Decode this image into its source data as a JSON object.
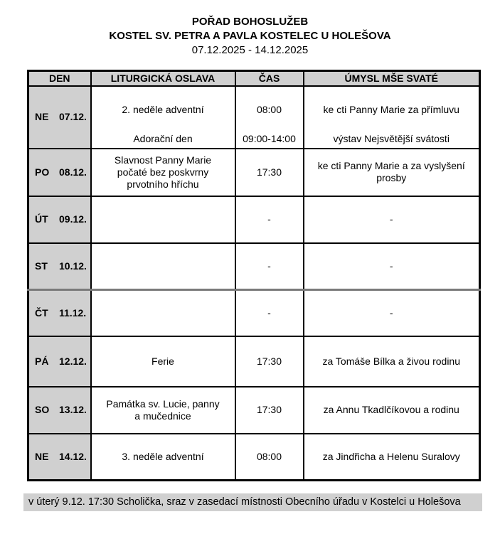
{
  "header": {
    "title": "POŘAD BOHOSLUŽEB",
    "subtitle": "KOSTEL SV. PETRA A PAVLA KOSTELEC U HOLEŠOVA",
    "date_range": "07.12.2025 - 14.12.2025"
  },
  "table": {
    "headers": [
      "DEN",
      "LITURGICKÁ OSLAVA",
      "ČAS",
      "ÚMYSL MŠE SVATÉ"
    ],
    "rows": [
      {
        "day": "NE",
        "date": "07.12.",
        "entries": [
          {
            "oslava": "2. neděle adventní",
            "cas": "08:00",
            "umysl": "ke cti Panny Marie za přímluvu"
          },
          {
            "oslava": "Adorační den",
            "cas": "09:00-14:00",
            "umysl": "výstav Nejsvětější svátosti"
          }
        ]
      },
      {
        "day": "PO",
        "date": "08.12.",
        "entries": [
          {
            "oslava": "Slavnost Panny Marie\npočaté bez poskvrny\nprvotního hříchu",
            "cas": "17:30",
            "umysl": "ke cti Panny Marie a za vyslyšení\nprosby"
          }
        ]
      },
      {
        "day": "ÚT",
        "date": "09.12.",
        "entries": [
          {
            "oslava": "",
            "cas": "-",
            "umysl": "-"
          }
        ]
      },
      {
        "day": "ST",
        "date": "10.12.",
        "entries": [
          {
            "oslava": "",
            "cas": "-",
            "umysl": "-"
          }
        ]
      },
      {
        "day": "ČT",
        "date": "11.12.",
        "entries": [
          {
            "oslava": "",
            "cas": "-",
            "umysl": "-"
          }
        ]
      },
      {
        "day": "PÁ",
        "date": "12.12.",
        "entries": [
          {
            "oslava": "Ferie",
            "cas": "17:30",
            "umysl": "za Tomáše Bílka a živou rodinu"
          }
        ]
      },
      {
        "day": "SO",
        "date": "13.12.",
        "entries": [
          {
            "oslava": "Památka sv. Lucie, panny\na mučednice",
            "cas": "17:30",
            "umysl": "za Annu Tkadlčíkovou a rodinu"
          }
        ]
      },
      {
        "day": "NE",
        "date": "14.12.",
        "entries": [
          {
            "oslava": "3. neděle adventní",
            "cas": "08:00",
            "umysl": "za Jindřicha a Helenu Suralovy"
          }
        ]
      }
    ]
  },
  "footer": {
    "note": "v úterý 9.12. 17:30 Scholička, sraz v zasedací místnosti Obecního úřadu v Kostelci u\nHolešova"
  },
  "colors": {
    "cell_gray": "#d0d0d0",
    "border_black": "#000000",
    "divider_gray": "#7a7a7a"
  }
}
